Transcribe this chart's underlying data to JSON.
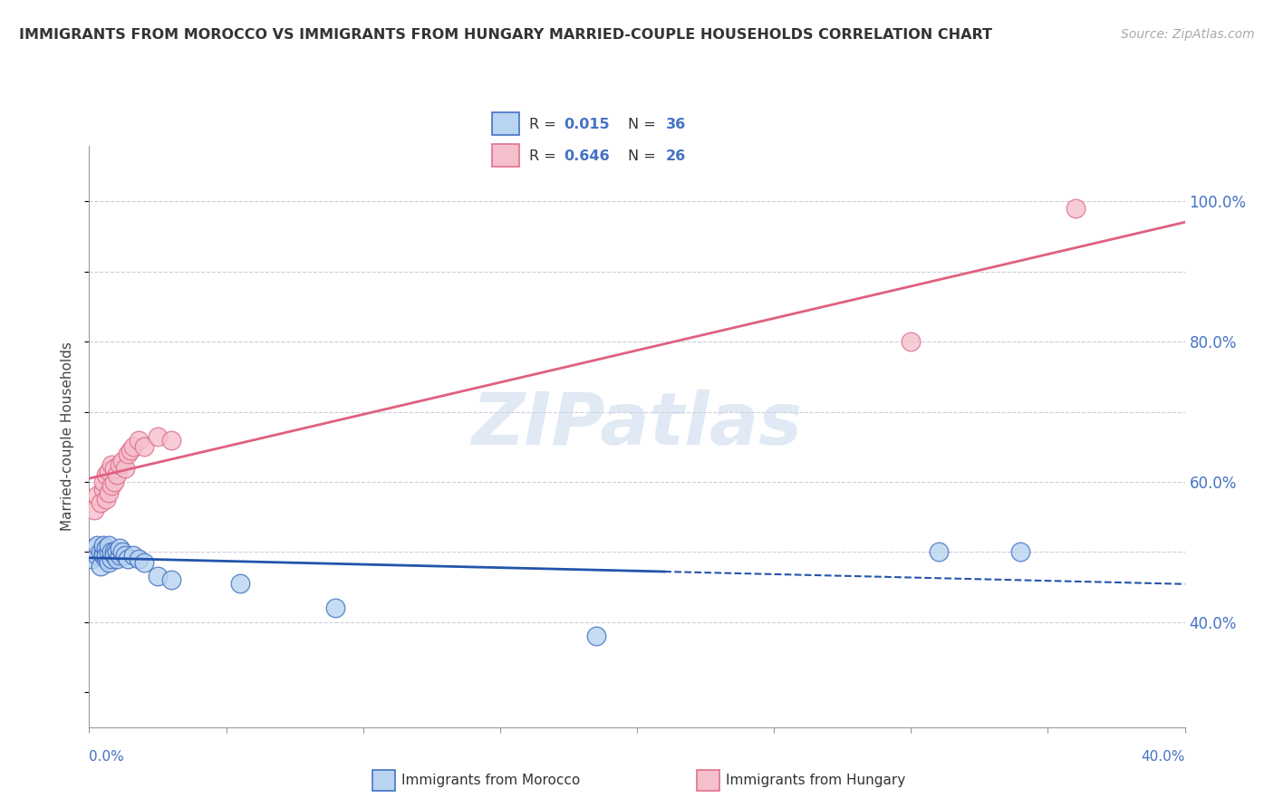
{
  "title": "IMMIGRANTS FROM MOROCCO VS IMMIGRANTS FROM HUNGARY MARRIED-COUPLE HOUSEHOLDS CORRELATION CHART",
  "source": "Source: ZipAtlas.com",
  "ylabel": "Married-couple Households",
  "ytick_values": [
    0.4,
    0.6,
    0.8,
    1.0
  ],
  "xrange": [
    0.0,
    0.4
  ],
  "yrange": [
    0.25,
    1.08
  ],
  "legend_r1": "0.015",
  "legend_n1": "36",
  "legend_r2": "0.646",
  "legend_n2": "26",
  "color_morocco_fill": "#b8d4f0",
  "color_morocco_edge": "#4472c4",
  "color_hungary_fill": "#f5c0cc",
  "color_hungary_edge": "#e07090",
  "color_line_morocco": "#2255aa",
  "color_line_hungary": "#e06080",
  "watermark_color": "#c8d8ec",
  "grid_color": "#ccccdd",
  "morocco_x": [
    0.001,
    0.002,
    0.003,
    0.003,
    0.004,
    0.004,
    0.005,
    0.005,
    0.005,
    0.006,
    0.006,
    0.006,
    0.007,
    0.007,
    0.007,
    0.008,
    0.008,
    0.009,
    0.009,
    0.01,
    0.01,
    0.011,
    0.011,
    0.012,
    0.013,
    0.014,
    0.016,
    0.018,
    0.02,
    0.025,
    0.03,
    0.055,
    0.09,
    0.185,
    0.31,
    0.34
  ],
  "morocco_y": [
    0.49,
    0.505,
    0.495,
    0.51,
    0.48,
    0.5,
    0.5,
    0.495,
    0.51,
    0.49,
    0.505,
    0.495,
    0.5,
    0.485,
    0.51,
    0.49,
    0.5,
    0.5,
    0.495,
    0.49,
    0.5,
    0.495,
    0.505,
    0.5,
    0.495,
    0.49,
    0.495,
    0.49,
    0.485,
    0.465,
    0.46,
    0.455,
    0.42,
    0.38,
    0.5,
    0.5
  ],
  "hungary_x": [
    0.002,
    0.003,
    0.004,
    0.005,
    0.005,
    0.006,
    0.006,
    0.007,
    0.007,
    0.008,
    0.008,
    0.009,
    0.009,
    0.01,
    0.011,
    0.012,
    0.013,
    0.014,
    0.015,
    0.016,
    0.018,
    0.02,
    0.025,
    0.03,
    0.3,
    0.36
  ],
  "hungary_y": [
    0.56,
    0.58,
    0.57,
    0.59,
    0.6,
    0.575,
    0.61,
    0.585,
    0.615,
    0.595,
    0.625,
    0.6,
    0.62,
    0.61,
    0.625,
    0.63,
    0.62,
    0.64,
    0.645,
    0.65,
    0.66,
    0.65,
    0.665,
    0.66,
    0.8,
    0.99
  ],
  "morocco_line_solid_end": 0.21,
  "grid_y_values": [
    0.4,
    0.5,
    0.6,
    0.7,
    0.8,
    0.9,
    1.0
  ]
}
